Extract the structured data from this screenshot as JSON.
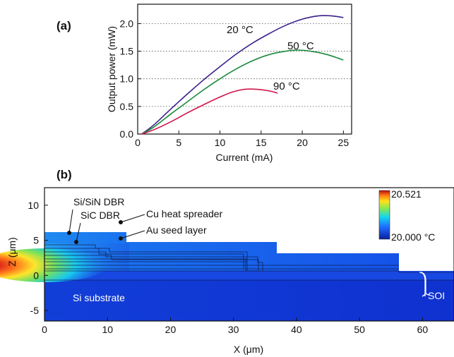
{
  "chart_data": [
    {
      "panel_label": "(a)",
      "type": "line",
      "xlabel": "Current (mA)",
      "ylabel": "Output power (mW)",
      "xlim": [
        0,
        26
      ],
      "ylim": [
        0,
        2.35
      ],
      "xticks": [
        "0",
        "5",
        "10",
        "15",
        "20",
        "25"
      ],
      "yticks": [
        "0.0",
        "0.5",
        "1.0",
        "1.5",
        "2.0"
      ],
      "grid": "horizontal dotted",
      "series": [
        {
          "name": "20 °C",
          "label": "20 °C",
          "color": "#3b1f8c",
          "x": [
            0.5,
            2,
            4,
            6,
            8,
            10,
            12,
            14,
            16,
            18,
            20,
            22,
            23.5,
            25
          ],
          "y": [
            0,
            0.17,
            0.45,
            0.72,
            0.98,
            1.22,
            1.45,
            1.65,
            1.82,
            1.97,
            2.08,
            2.14,
            2.14,
            2.11
          ]
        },
        {
          "name": "50 °C",
          "label": "50 °C",
          "color": "#1a8a3c",
          "x": [
            0.5,
            2,
            4,
            6,
            8,
            10,
            12,
            14,
            16,
            18,
            19.5,
            21,
            23,
            25
          ],
          "y": [
            0,
            0.13,
            0.36,
            0.58,
            0.8,
            1.0,
            1.18,
            1.33,
            1.44,
            1.5,
            1.52,
            1.5,
            1.44,
            1.34
          ]
        },
        {
          "name": "90 °C",
          "label": "90 °C",
          "color": "#d0144a",
          "x": [
            0.5,
            2,
            4,
            6,
            8,
            10,
            11.5,
            13,
            14.5,
            16,
            17
          ],
          "y": [
            0,
            0.08,
            0.22,
            0.38,
            0.53,
            0.67,
            0.76,
            0.81,
            0.81,
            0.78,
            0.74
          ]
        }
      ]
    },
    {
      "panel_label": "(b)",
      "type": "heatmap",
      "xlabel": "X (μm)",
      "ylabel": "Z (μm)",
      "xlim": [
        0,
        65
      ],
      "ylim": [
        -6.5,
        12.5
      ],
      "xticks": [
        "0",
        "10",
        "20",
        "30",
        "40",
        "50",
        "60"
      ],
      "yticks": [
        "-5",
        "0",
        "5",
        "10"
      ],
      "colorbar": {
        "max": "20.521",
        "min": "20.000 °C"
      },
      "annotations": [
        "Si/SiN DBR",
        "SiC DBR",
        "Cu heat spreader",
        "Au seed layer",
        "Si substrate",
        "SOI"
      ]
    }
  ]
}
